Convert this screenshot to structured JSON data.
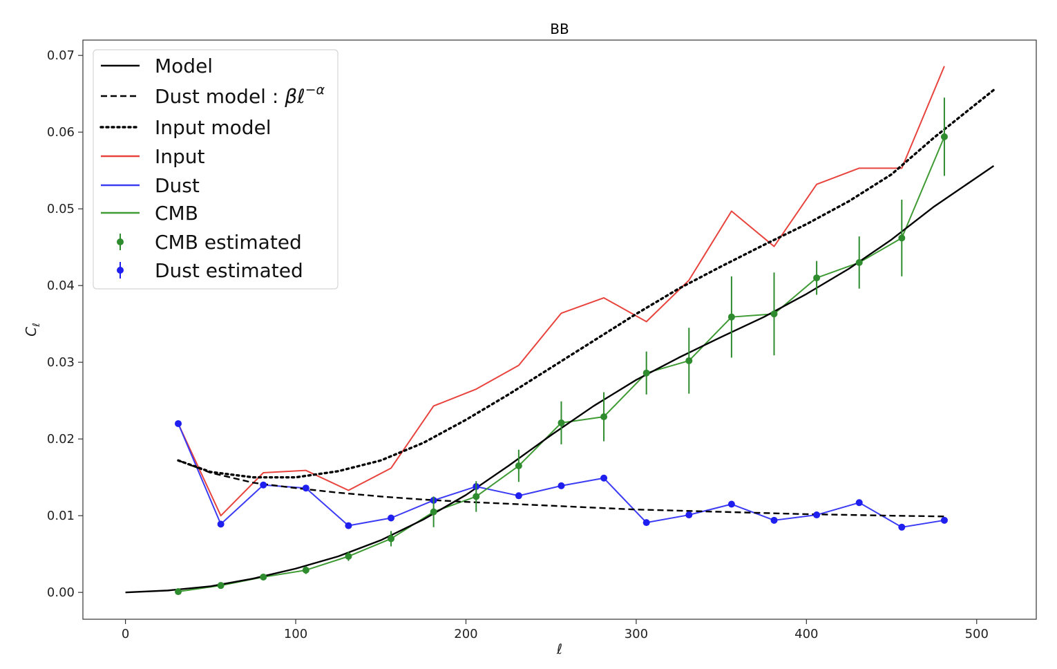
{
  "chart_data": {
    "type": "line",
    "title": "BB",
    "xlabel": "ℓ",
    "ylabel": "C_ℓ",
    "xlim": [
      -25,
      535
    ],
    "ylim": [
      -0.0035,
      0.072
    ],
    "xticks": [
      0,
      100,
      200,
      300,
      400,
      500
    ],
    "xtick_labels": [
      "0",
      "100",
      "200",
      "300",
      "400",
      "500"
    ],
    "yticks": [
      0.0,
      0.01,
      0.02,
      0.03,
      0.04,
      0.05,
      0.06,
      0.07
    ],
    "ytick_labels": [
      "0.00",
      "0.01",
      "0.02",
      "0.03",
      "0.04",
      "0.05",
      "0.06",
      "0.07"
    ],
    "grid": false,
    "legend_position": "top-left",
    "series": [
      {
        "key": "model",
        "name": "Model",
        "style": "solid",
        "color": "#000000",
        "x": [
          0,
          25,
          50,
          75,
          100,
          125,
          150,
          175,
          200,
          225,
          250,
          275,
          300,
          325,
          350,
          375,
          400,
          425,
          450,
          475,
          510
        ],
        "y": [
          0.0,
          0.00025,
          0.0008,
          0.0018,
          0.0031,
          0.0047,
          0.0068,
          0.0095,
          0.0127,
          0.0165,
          0.0205,
          0.0243,
          0.0277,
          0.0306,
          0.0333,
          0.0359,
          0.0389,
          0.0422,
          0.046,
          0.0503,
          0.0556
        ]
      },
      {
        "key": "dust_model",
        "name": "Dust model : βℓ^{-α}",
        "style": "dashed",
        "color": "#000000",
        "x": [
          31,
          50,
          75,
          100,
          125,
          150,
          175,
          200,
          250,
          300,
          350,
          400,
          450,
          481
        ],
        "y": [
          0.0172,
          0.0156,
          0.0143,
          0.0136,
          0.013,
          0.0125,
          0.0121,
          0.0118,
          0.0113,
          0.0108,
          0.0105,
          0.0102,
          0.01,
          0.0099
        ]
      },
      {
        "key": "input_model",
        "name": "Input model",
        "style": "dotted",
        "color": "#000000",
        "x": [
          31,
          50,
          75,
          100,
          125,
          150,
          175,
          200,
          225,
          250,
          275,
          300,
          325,
          350,
          375,
          400,
          425,
          450,
          475,
          510
        ],
        "y": [
          0.0172,
          0.0157,
          0.015,
          0.015,
          0.0158,
          0.0172,
          0.0195,
          0.0225,
          0.0258,
          0.0293,
          0.0328,
          0.0363,
          0.0396,
          0.0425,
          0.0453,
          0.048,
          0.051,
          0.0545,
          0.0593,
          0.0655
        ]
      },
      {
        "key": "input",
        "name": "Input",
        "style": "solid",
        "color": "#e8433d",
        "x": [
          31,
          56,
          81,
          106,
          131,
          156,
          181,
          206,
          231,
          256,
          281,
          306,
          331,
          356,
          381,
          406,
          431,
          456,
          481
        ],
        "y": [
          0.022,
          0.01,
          0.0156,
          0.0159,
          0.0133,
          0.0162,
          0.0243,
          0.0265,
          0.0296,
          0.0364,
          0.0384,
          0.0353,
          0.0407,
          0.0497,
          0.0451,
          0.0532,
          0.0553,
          0.0553,
          0.0686
        ]
      },
      {
        "key": "dust",
        "name": "Dust",
        "style": "solid",
        "color": "#3b3bf5",
        "x": [
          31,
          56,
          81,
          106,
          131,
          156,
          181,
          206,
          231,
          256,
          281,
          306,
          331,
          356,
          381,
          406,
          431,
          456,
          481
        ],
        "y": [
          0.022,
          0.0089,
          0.014,
          0.0136,
          0.0087,
          0.0097,
          0.012,
          0.0138,
          0.0126,
          0.0139,
          0.0149,
          0.0091,
          0.0101,
          0.0115,
          0.0094,
          0.0101,
          0.0117,
          0.0085,
          0.0094
        ]
      },
      {
        "key": "cmb",
        "name": "CMB",
        "style": "solid",
        "color": "#3e9a33",
        "x": [
          31,
          56,
          81,
          106,
          131,
          156,
          181,
          206,
          231,
          256,
          281,
          306,
          331,
          356,
          381,
          406,
          431,
          456,
          481
        ],
        "y": [
          0.0001,
          0.0009,
          0.002,
          0.0029,
          0.0047,
          0.007,
          0.0105,
          0.0125,
          0.0165,
          0.0221,
          0.0229,
          0.0286,
          0.0302,
          0.0359,
          0.0363,
          0.041,
          0.043,
          0.0462,
          0.0594
        ]
      },
      {
        "key": "cmb_est",
        "name": "CMB estimated",
        "style": "errorbar",
        "color": "#2e8b2e",
        "x": [
          31,
          56,
          81,
          106,
          131,
          156,
          181,
          206,
          231,
          256,
          281,
          306,
          331,
          356,
          381,
          406,
          431,
          456,
          481
        ],
        "y": [
          0.0001,
          0.0009,
          0.002,
          0.0029,
          0.0047,
          0.007,
          0.0105,
          0.0125,
          0.0165,
          0.0221,
          0.0229,
          0.0286,
          0.0302,
          0.0359,
          0.0363,
          0.041,
          0.043,
          0.0462,
          0.0594
        ],
        "yerr": [
          0.0002,
          0.0003,
          0.0004,
          0.0005,
          0.0006,
          0.001,
          0.002,
          0.002,
          0.0021,
          0.0028,
          0.0032,
          0.0028,
          0.0043,
          0.0053,
          0.0054,
          0.0022,
          0.0034,
          0.005,
          0.0051
        ]
      },
      {
        "key": "dust_est",
        "name": "Dust estimated",
        "style": "errorbar",
        "color": "#1f1ff0",
        "x": [
          31,
          56,
          81,
          106,
          131,
          156,
          181,
          206,
          231,
          256,
          281,
          306,
          331,
          356,
          381,
          406,
          431,
          456,
          481
        ],
        "y": [
          0.022,
          0.0089,
          0.014,
          0.0136,
          0.0087,
          0.0097,
          0.012,
          0.0138,
          0.0126,
          0.0139,
          0.0149,
          0.0091,
          0.0101,
          0.0115,
          0.0094,
          0.0101,
          0.0117,
          0.0085,
          0.0094
        ],
        "yerr": [
          0.0003,
          0.0003,
          0.0003,
          0.0003,
          0.0003,
          0.0003,
          0.0003,
          0.0003,
          0.0003,
          0.0003,
          0.0003,
          0.0003,
          0.0003,
          0.0003,
          0.0003,
          0.0003,
          0.0003,
          0.0003,
          0.0003
        ]
      }
    ]
  }
}
